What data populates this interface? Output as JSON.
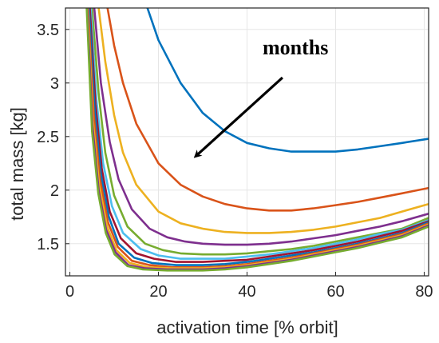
{
  "chart_data": {
    "type": "line",
    "title": "",
    "xlabel": "activation time [% orbit]",
    "ylabel": "total mass [kg]",
    "xlim": [
      -1,
      81
    ],
    "ylim": [
      1.2,
      3.7
    ],
    "xticks": [
      0,
      20,
      40,
      60,
      80
    ],
    "yticks": [
      1.5,
      2,
      2.5,
      3,
      3.5
    ],
    "x_tick_labels": [
      "0",
      "20",
      "40",
      "60",
      "80"
    ],
    "y_tick_labels": [
      "1.5",
      "2",
      "2.5",
      "3",
      "3.5"
    ],
    "grid": true,
    "annotation": {
      "text": "months",
      "arrow_from": [
        48,
        3.05
      ],
      "arrow_to": [
        28.5,
        2.32
      ]
    },
    "series": [
      {
        "color": "#0072BD",
        "points": [
          [
            17.5,
            3.7
          ],
          [
            20,
            3.4
          ],
          [
            25,
            3.0
          ],
          [
            30,
            2.72
          ],
          [
            35,
            2.55
          ],
          [
            40,
            2.44
          ],
          [
            45,
            2.39
          ],
          [
            50,
            2.36
          ],
          [
            55,
            2.36
          ],
          [
            60,
            2.36
          ],
          [
            65,
            2.38
          ],
          [
            70,
            2.41
          ],
          [
            75,
            2.44
          ],
          [
            81,
            2.48
          ]
        ]
      },
      {
        "color": "#D95319",
        "points": [
          [
            8.5,
            3.7
          ],
          [
            10,
            3.35
          ],
          [
            12,
            3.0
          ],
          [
            15,
            2.62
          ],
          [
            20,
            2.25
          ],
          [
            25,
            2.05
          ],
          [
            30,
            1.94
          ],
          [
            35,
            1.87
          ],
          [
            40,
            1.83
          ],
          [
            45,
            1.81
          ],
          [
            50,
            1.81
          ],
          [
            55,
            1.83
          ],
          [
            60,
            1.86
          ],
          [
            65,
            1.89
          ],
          [
            70,
            1.93
          ],
          [
            75,
            1.97
          ],
          [
            81,
            2.02
          ]
        ]
      },
      {
        "color": "#EDB120",
        "points": [
          [
            6.5,
            3.7
          ],
          [
            8,
            3.2
          ],
          [
            10,
            2.7
          ],
          [
            12,
            2.35
          ],
          [
            15,
            2.05
          ],
          [
            20,
            1.8
          ],
          [
            25,
            1.69
          ],
          [
            30,
            1.64
          ],
          [
            35,
            1.61
          ],
          [
            40,
            1.6
          ],
          [
            45,
            1.6
          ],
          [
            50,
            1.61
          ],
          [
            55,
            1.63
          ],
          [
            60,
            1.66
          ],
          [
            65,
            1.7
          ],
          [
            70,
            1.74
          ],
          [
            75,
            1.8
          ],
          [
            81,
            1.87
          ]
        ]
      },
      {
        "color": "#7E2F8E",
        "points": [
          [
            5.5,
            3.7
          ],
          [
            7,
            3.0
          ],
          [
            9,
            2.45
          ],
          [
            11,
            2.1
          ],
          [
            14,
            1.82
          ],
          [
            18,
            1.64
          ],
          [
            22,
            1.56
          ],
          [
            26,
            1.52
          ],
          [
            30,
            1.5
          ],
          [
            35,
            1.49
          ],
          [
            40,
            1.49
          ],
          [
            45,
            1.5
          ],
          [
            50,
            1.52
          ],
          [
            55,
            1.55
          ],
          [
            60,
            1.58
          ],
          [
            65,
            1.62
          ],
          [
            70,
            1.66
          ],
          [
            75,
            1.71
          ],
          [
            81,
            1.78
          ]
        ]
      },
      {
        "color": "#77AC30",
        "points": [
          [
            5,
            3.7
          ],
          [
            6.5,
            2.9
          ],
          [
            8,
            2.35
          ],
          [
            10,
            1.95
          ],
          [
            13,
            1.66
          ],
          [
            17,
            1.5
          ],
          [
            21,
            1.44
          ],
          [
            25,
            1.41
          ],
          [
            30,
            1.4
          ],
          [
            35,
            1.4
          ],
          [
            40,
            1.41
          ],
          [
            45,
            1.43
          ],
          [
            50,
            1.45
          ],
          [
            55,
            1.48
          ],
          [
            60,
            1.52
          ],
          [
            65,
            1.56
          ],
          [
            70,
            1.6
          ],
          [
            75,
            1.64
          ],
          [
            81,
            1.74
          ]
        ]
      },
      {
        "color": "#4DBEEE",
        "points": [
          [
            4.7,
            3.7
          ],
          [
            6,
            2.85
          ],
          [
            7.5,
            2.25
          ],
          [
            9.5,
            1.85
          ],
          [
            12,
            1.6
          ],
          [
            16,
            1.45
          ],
          [
            20,
            1.39
          ],
          [
            25,
            1.36
          ],
          [
            30,
            1.36
          ],
          [
            35,
            1.36
          ],
          [
            40,
            1.38
          ],
          [
            45,
            1.4
          ],
          [
            50,
            1.43
          ],
          [
            55,
            1.46
          ],
          [
            60,
            1.5
          ],
          [
            65,
            1.54
          ],
          [
            70,
            1.59
          ],
          [
            75,
            1.63
          ],
          [
            81,
            1.72
          ]
        ]
      },
      {
        "color": "#A2142F",
        "points": [
          [
            4.5,
            3.7
          ],
          [
            5.8,
            2.8
          ],
          [
            7.2,
            2.2
          ],
          [
            9,
            1.8
          ],
          [
            11.5,
            1.55
          ],
          [
            15,
            1.41
          ],
          [
            19,
            1.36
          ],
          [
            24,
            1.33
          ],
          [
            30,
            1.33
          ],
          [
            35,
            1.34
          ],
          [
            40,
            1.35
          ],
          [
            45,
            1.38
          ],
          [
            50,
            1.41
          ],
          [
            55,
            1.44
          ],
          [
            60,
            1.48
          ],
          [
            65,
            1.52
          ],
          [
            70,
            1.57
          ],
          [
            75,
            1.62
          ],
          [
            81,
            1.71
          ]
        ]
      },
      {
        "color": "#0072BD",
        "points": [
          [
            4.3,
            3.7
          ],
          [
            5.6,
            2.75
          ],
          [
            7,
            2.15
          ],
          [
            8.8,
            1.75
          ],
          [
            11,
            1.5
          ],
          [
            14.5,
            1.37
          ],
          [
            18.5,
            1.32
          ],
          [
            24,
            1.3
          ],
          [
            30,
            1.3
          ],
          [
            35,
            1.31
          ],
          [
            40,
            1.33
          ],
          [
            45,
            1.36
          ],
          [
            50,
            1.39
          ],
          [
            55,
            1.42
          ],
          [
            60,
            1.46
          ],
          [
            65,
            1.5
          ],
          [
            70,
            1.55
          ],
          [
            75,
            1.6
          ],
          [
            81,
            1.7
          ]
        ]
      },
      {
        "color": "#D95319",
        "points": [
          [
            4.1,
            3.7
          ],
          [
            5.4,
            2.7
          ],
          [
            6.8,
            2.1
          ],
          [
            8.6,
            1.7
          ],
          [
            10.8,
            1.47
          ],
          [
            14,
            1.34
          ],
          [
            18,
            1.3
          ],
          [
            23,
            1.28
          ],
          [
            30,
            1.28
          ],
          [
            35,
            1.29
          ],
          [
            40,
            1.31
          ],
          [
            45,
            1.34
          ],
          [
            50,
            1.37
          ],
          [
            55,
            1.41
          ],
          [
            60,
            1.45
          ],
          [
            65,
            1.49
          ],
          [
            70,
            1.54
          ],
          [
            75,
            1.59
          ],
          [
            81,
            1.69
          ]
        ]
      },
      {
        "color": "#EDB120",
        "points": [
          [
            4,
            3.7
          ],
          [
            5.2,
            2.65
          ],
          [
            6.6,
            2.05
          ],
          [
            8.4,
            1.66
          ],
          [
            10.5,
            1.44
          ],
          [
            13.5,
            1.32
          ],
          [
            17.5,
            1.28
          ],
          [
            23,
            1.27
          ],
          [
            30,
            1.27
          ],
          [
            35,
            1.28
          ],
          [
            40,
            1.3
          ],
          [
            45,
            1.33
          ],
          [
            50,
            1.36
          ],
          [
            55,
            1.4
          ],
          [
            60,
            1.44
          ],
          [
            65,
            1.48
          ],
          [
            70,
            1.53
          ],
          [
            75,
            1.58
          ],
          [
            81,
            1.68
          ]
        ]
      },
      {
        "color": "#7E2F8E",
        "points": [
          [
            3.9,
            3.7
          ],
          [
            5.1,
            2.6
          ],
          [
            6.5,
            2.0
          ],
          [
            8.2,
            1.63
          ],
          [
            10.3,
            1.42
          ],
          [
            13.2,
            1.3
          ],
          [
            17,
            1.27
          ],
          [
            22,
            1.26
          ],
          [
            30,
            1.26
          ],
          [
            35,
            1.27
          ],
          [
            40,
            1.29
          ],
          [
            45,
            1.32
          ],
          [
            50,
            1.35
          ],
          [
            55,
            1.39
          ],
          [
            60,
            1.43
          ],
          [
            65,
            1.47
          ],
          [
            70,
            1.52
          ],
          [
            75,
            1.57
          ],
          [
            81,
            1.67
          ]
        ]
      },
      {
        "color": "#77AC30",
        "points": [
          [
            3.8,
            3.7
          ],
          [
            5,
            2.55
          ],
          [
            6.4,
            1.97
          ],
          [
            8.1,
            1.6
          ],
          [
            10.1,
            1.4
          ],
          [
            13,
            1.29
          ],
          [
            16.5,
            1.26
          ],
          [
            22,
            1.25
          ],
          [
            30,
            1.25
          ],
          [
            35,
            1.26
          ],
          [
            40,
            1.28
          ],
          [
            45,
            1.31
          ],
          [
            50,
            1.34
          ],
          [
            55,
            1.38
          ],
          [
            60,
            1.42
          ],
          [
            65,
            1.46
          ],
          [
            70,
            1.51
          ],
          [
            75,
            1.56
          ],
          [
            81,
            1.66
          ]
        ]
      }
    ]
  }
}
